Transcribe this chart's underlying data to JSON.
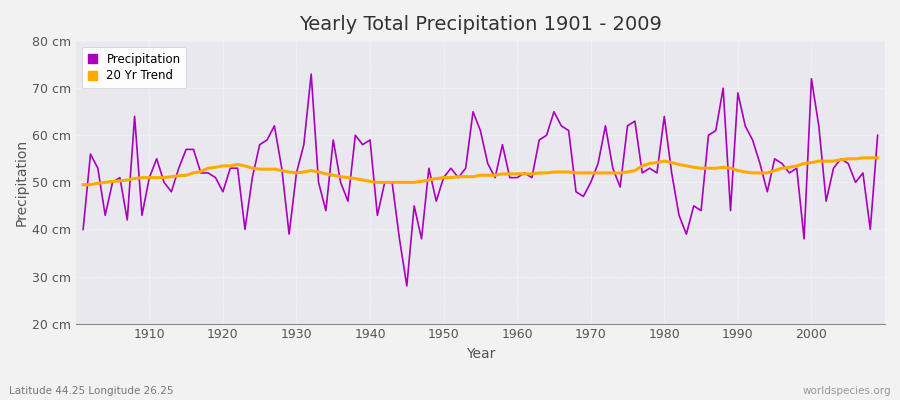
{
  "title": "Yearly Total Precipitation 1901 - 2009",
  "xlabel": "Year",
  "ylabel": "Precipitation",
  "subtitle": "Latitude 44.25 Longitude 26.25",
  "watermark": "worldspecies.org",
  "ylim": [
    20,
    80
  ],
  "yticks": [
    20,
    30,
    40,
    50,
    60,
    70,
    80
  ],
  "ytick_labels": [
    "20 cm",
    "30 cm",
    "40 cm",
    "50 cm",
    "60 cm",
    "70 cm",
    "80 cm"
  ],
  "xlim": [
    1901,
    2009
  ],
  "precipitation_color": "#aa00bb",
  "trend_color": "#ffaa00",
  "fig_bg_color": "#f0f0f0",
  "plot_bg_color": "#e8e8ee",
  "years": [
    1901,
    1902,
    1903,
    1904,
    1905,
    1906,
    1907,
    1908,
    1909,
    1910,
    1911,
    1912,
    1913,
    1914,
    1915,
    1916,
    1917,
    1918,
    1919,
    1920,
    1921,
    1922,
    1923,
    1924,
    1925,
    1926,
    1927,
    1928,
    1929,
    1930,
    1931,
    1932,
    1933,
    1934,
    1935,
    1936,
    1937,
    1938,
    1939,
    1940,
    1941,
    1942,
    1943,
    1944,
    1945,
    1946,
    1947,
    1948,
    1949,
    1950,
    1951,
    1952,
    1953,
    1954,
    1955,
    1956,
    1957,
    1958,
    1959,
    1960,
    1961,
    1962,
    1963,
    1964,
    1965,
    1966,
    1967,
    1968,
    1969,
    1970,
    1971,
    1972,
    1973,
    1974,
    1975,
    1976,
    1977,
    1978,
    1979,
    1980,
    1981,
    1982,
    1983,
    1984,
    1985,
    1986,
    1987,
    1988,
    1989,
    1990,
    1991,
    1992,
    1993,
    1994,
    1995,
    1996,
    1997,
    1998,
    1999,
    2000,
    2001,
    2002,
    2003,
    2004,
    2005,
    2006,
    2007,
    2008,
    2009
  ],
  "precipitation": [
    40,
    56,
    53,
    43,
    50,
    51,
    42,
    64,
    43,
    51,
    55,
    50,
    48,
    53,
    57,
    57,
    52,
    52,
    51,
    48,
    53,
    53,
    40,
    51,
    58,
    59,
    62,
    53,
    39,
    52,
    58,
    73,
    50,
    44,
    59,
    50,
    46,
    60,
    58,
    59,
    43,
    50,
    50,
    38,
    28,
    45,
    38,
    53,
    46,
    51,
    53,
    51,
    53,
    65,
    61,
    54,
    51,
    58,
    51,
    51,
    52,
    51,
    59,
    60,
    65,
    62,
    61,
    48,
    47,
    50,
    54,
    62,
    53,
    49,
    62,
    63,
    52,
    53,
    52,
    64,
    52,
    43,
    39,
    45,
    44,
    60,
    61,
    70,
    44,
    69,
    62,
    59,
    54,
    48,
    55,
    54,
    52,
    53,
    38,
    72,
    62,
    46,
    53,
    55,
    54,
    50,
    52,
    40,
    60
  ],
  "trend": [
    49.5,
    49.5,
    49.8,
    50.0,
    50.2,
    50.3,
    50.5,
    50.8,
    51.0,
    51.0,
    51.0,
    51.0,
    51.2,
    51.4,
    51.5,
    52.0,
    52.3,
    53.0,
    53.2,
    53.5,
    53.5,
    53.8,
    53.5,
    53.0,
    52.8,
    52.8,
    52.8,
    52.5,
    52.2,
    52.0,
    52.2,
    52.5,
    52.2,
    51.8,
    51.5,
    51.2,
    51.0,
    50.8,
    50.5,
    50.2,
    50.0,
    50.0,
    50.0,
    50.0,
    50.0,
    50.0,
    50.2,
    50.5,
    50.8,
    51.0,
    51.0,
    51.2,
    51.2,
    51.2,
    51.5,
    51.5,
    51.5,
    51.8,
    51.8,
    51.8,
    51.8,
    51.8,
    52.0,
    52.0,
    52.2,
    52.2,
    52.2,
    52.0,
    52.0,
    52.0,
    52.0,
    52.0,
    52.0,
    52.0,
    52.2,
    52.5,
    53.5,
    54.0,
    54.2,
    54.5,
    54.2,
    53.8,
    53.5,
    53.2,
    53.0,
    53.0,
    53.0,
    53.2,
    53.0,
    52.5,
    52.2,
    52.0,
    52.0,
    52.0,
    52.5,
    53.0,
    53.2,
    53.5,
    54.0,
    54.2,
    54.5,
    54.5,
    54.5,
    54.8,
    55.0,
    55.0,
    55.2,
    55.2,
    55.2
  ]
}
